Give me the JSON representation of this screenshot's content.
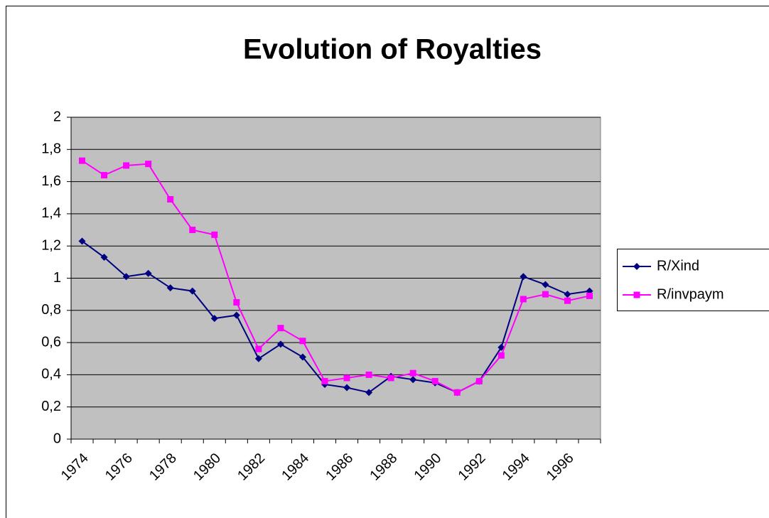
{
  "chart_data": {
    "type": "line",
    "title": "Evolution of Royalties",
    "categories": [
      "1974",
      null,
      "1976",
      null,
      "1978",
      null,
      "1980",
      null,
      "1982",
      null,
      "1984",
      null,
      "1986",
      null,
      "1988",
      null,
      "1990",
      null,
      "1992",
      null,
      "1994",
      null,
      "1996",
      null
    ],
    "series": [
      {
        "name": "R/Xind",
        "color": "#000080",
        "marker": "diamond",
        "values": [
          1.23,
          1.13,
          1.01,
          1.03,
          0.94,
          0.92,
          0.75,
          0.77,
          0.5,
          0.59,
          0.51,
          0.34,
          0.32,
          0.29,
          0.39,
          0.37,
          0.35,
          0.29,
          0.36,
          0.57,
          1.01,
          0.96,
          0.9,
          0.92
        ]
      },
      {
        "name": "R/invpaym",
        "color": "#FF00FF",
        "marker": "square",
        "values": [
          1.73,
          1.64,
          1.7,
          1.71,
          1.49,
          1.3,
          1.27,
          0.85,
          0.56,
          0.69,
          0.61,
          0.36,
          0.38,
          0.4,
          0.38,
          0.41,
          0.36,
          0.29,
          0.36,
          0.52,
          0.87,
          0.9,
          0.86,
          0.89
        ]
      }
    ],
    "ylim": [
      0,
      2
    ],
    "yticks": [
      0,
      {
        "value": 0.2,
        "label": "0,2"
      },
      {
        "value": 0.4,
        "label": "0,4"
      },
      {
        "value": 0.6,
        "label": "0,6"
      },
      {
        "value": 0.8,
        "label": "0,8"
      },
      1,
      {
        "value": 1.2,
        "label": "1,2"
      },
      {
        "value": 1.4,
        "label": "1,4"
      },
      {
        "value": 1.6,
        "label": "1,6"
      },
      {
        "value": 1.8,
        "label": "1,8"
      },
      2
    ],
    "grid": true,
    "legend": "right",
    "plot_background": "#C0C0C0"
  }
}
